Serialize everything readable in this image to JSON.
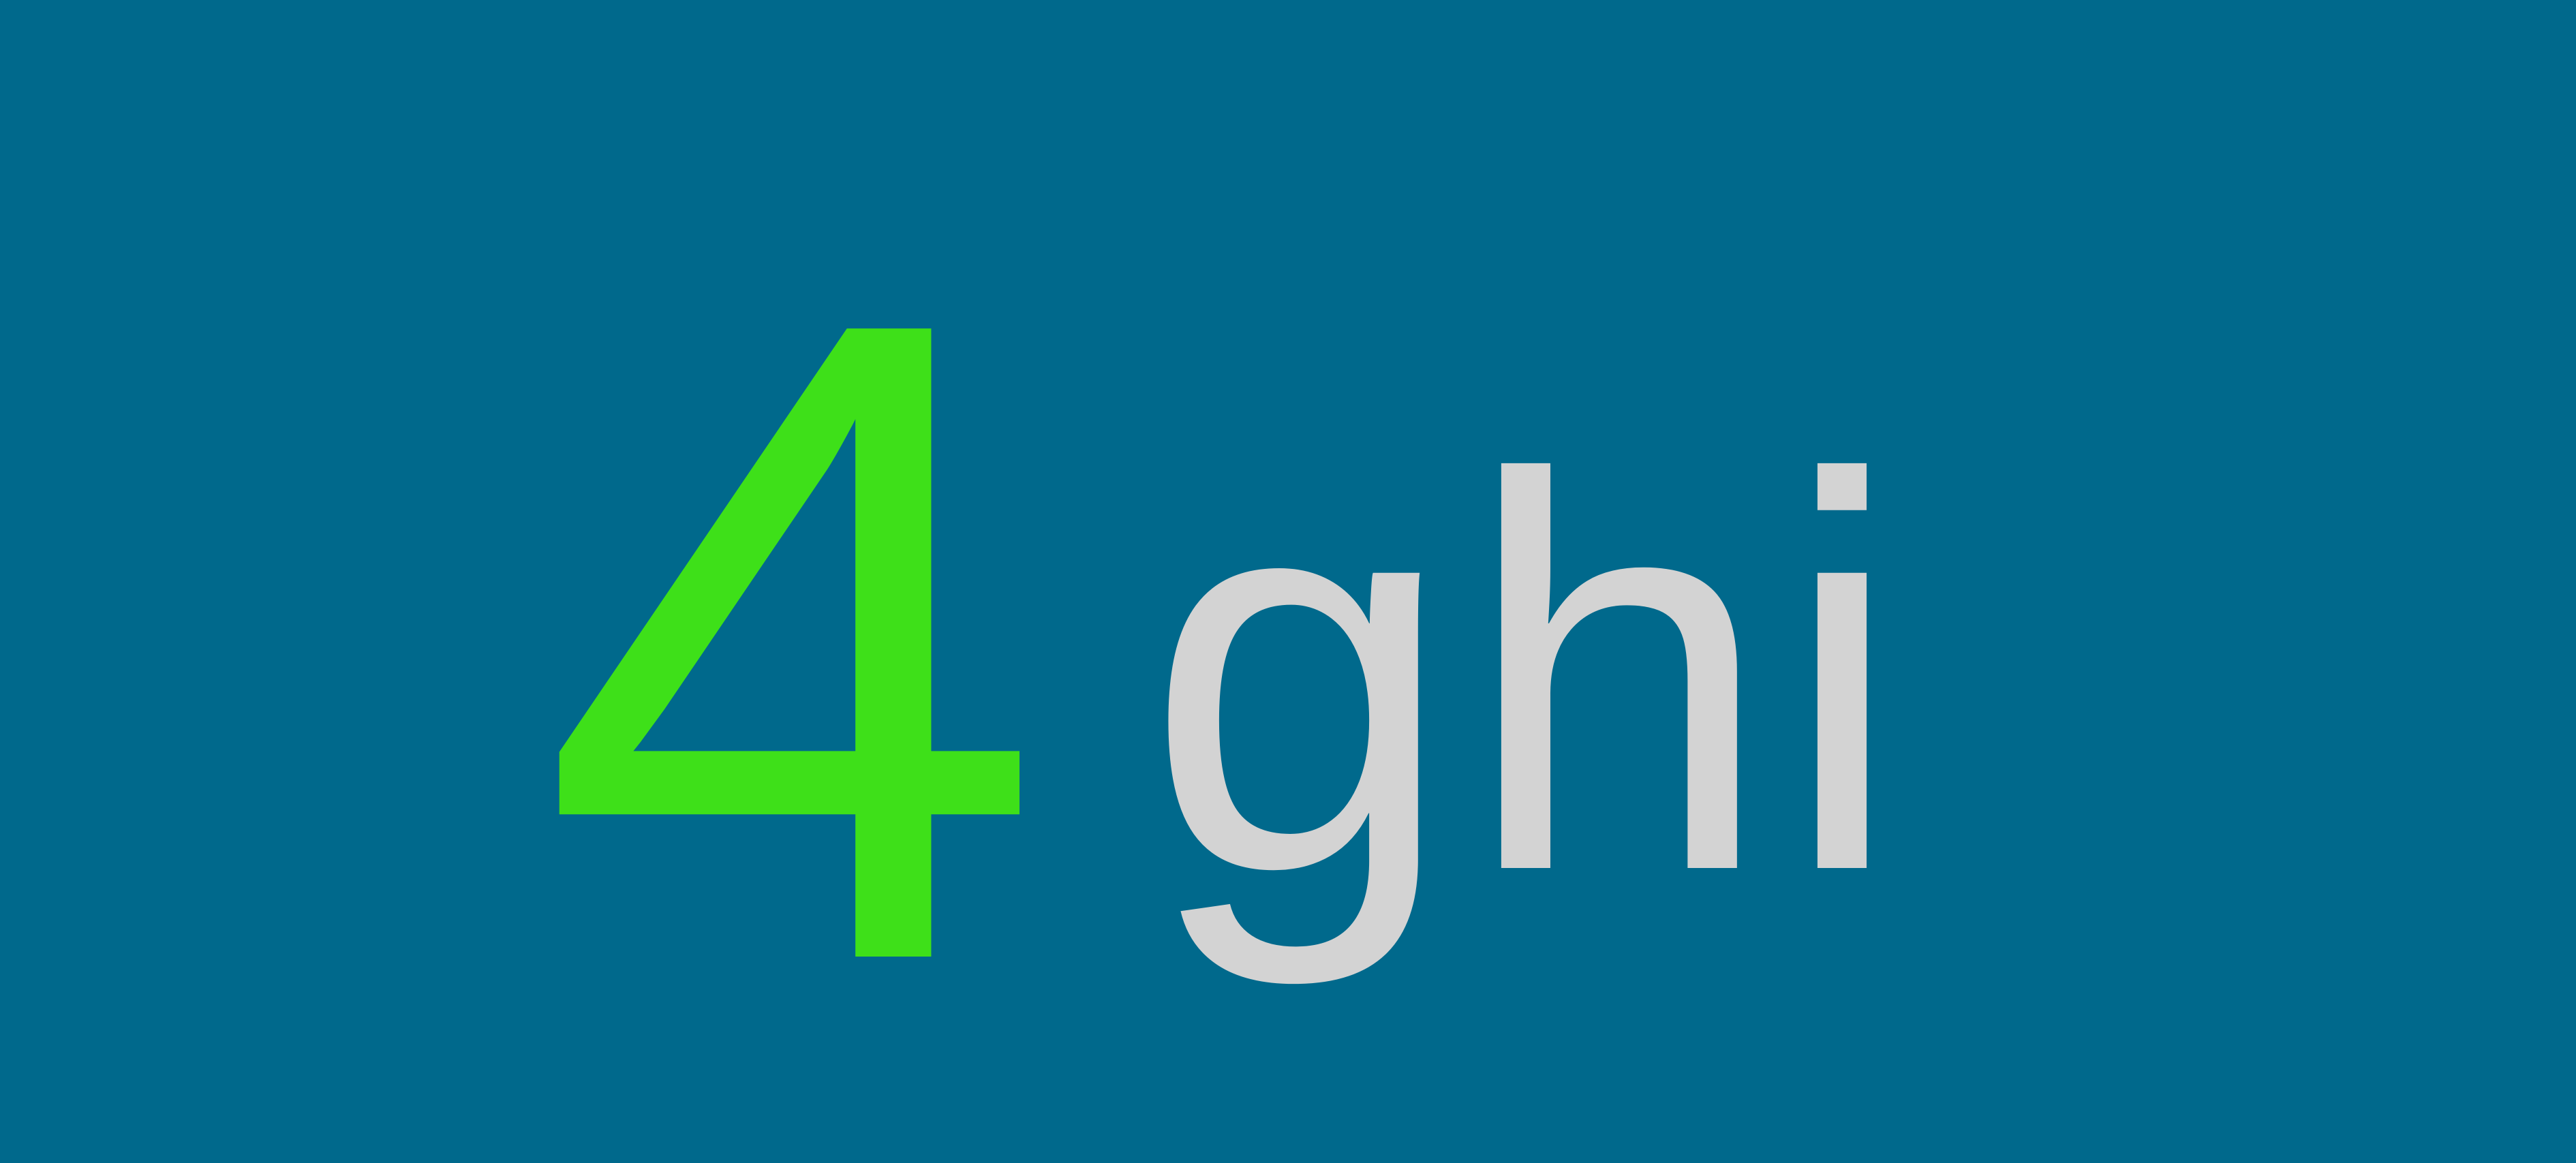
{
  "colors": {
    "background": "#00698C",
    "digit": "#3EE019",
    "letters": "#D3D3D3"
  },
  "key": {
    "digit": "4",
    "letters": "ghi"
  }
}
